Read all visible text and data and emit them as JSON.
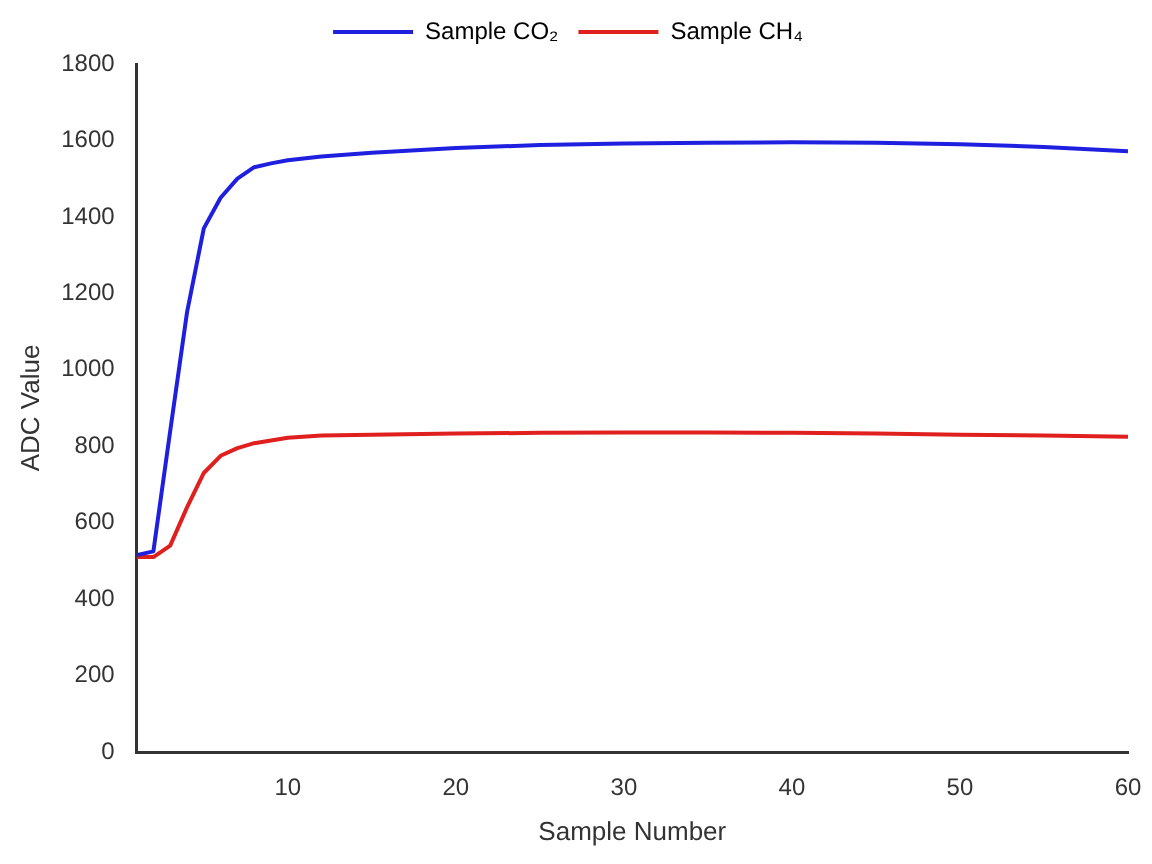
{
  "chart_data": {
    "type": "line",
    "xlabel": "Sample Number",
    "ylabel": "ADC Value",
    "x": [
      1,
      2,
      3,
      4,
      5,
      6,
      7,
      8,
      9,
      10,
      12,
      15,
      20,
      25,
      30,
      35,
      40,
      45,
      50,
      55,
      60
    ],
    "series": [
      {
        "name": "Sample CO₂",
        "color": "#1f1fe0",
        "values": [
          515,
          525,
          840,
          1150,
          1370,
          1450,
          1500,
          1530,
          1540,
          1548,
          1558,
          1568,
          1580,
          1588,
          1592,
          1594,
          1595,
          1594,
          1590,
          1583,
          1572
        ]
      },
      {
        "name": "Sample CH₄",
        "color": "#e01f1f",
        "values": [
          510,
          510,
          540,
          640,
          730,
          775,
          795,
          808,
          815,
          822,
          828,
          830,
          833,
          835,
          836,
          836,
          835,
          833,
          830,
          828,
          825
        ]
      }
    ],
    "xlim": [
      1,
      60
    ],
    "xticks": [
      10,
      20,
      30,
      40,
      50,
      60
    ],
    "ylim": [
      0,
      1800
    ],
    "yticks": [
      0,
      200,
      400,
      600,
      800,
      1000,
      1200,
      1400,
      1600,
      1800
    ],
    "grid": false,
    "legend": "top",
    "marker": "none",
    "line_style": "solid"
  }
}
